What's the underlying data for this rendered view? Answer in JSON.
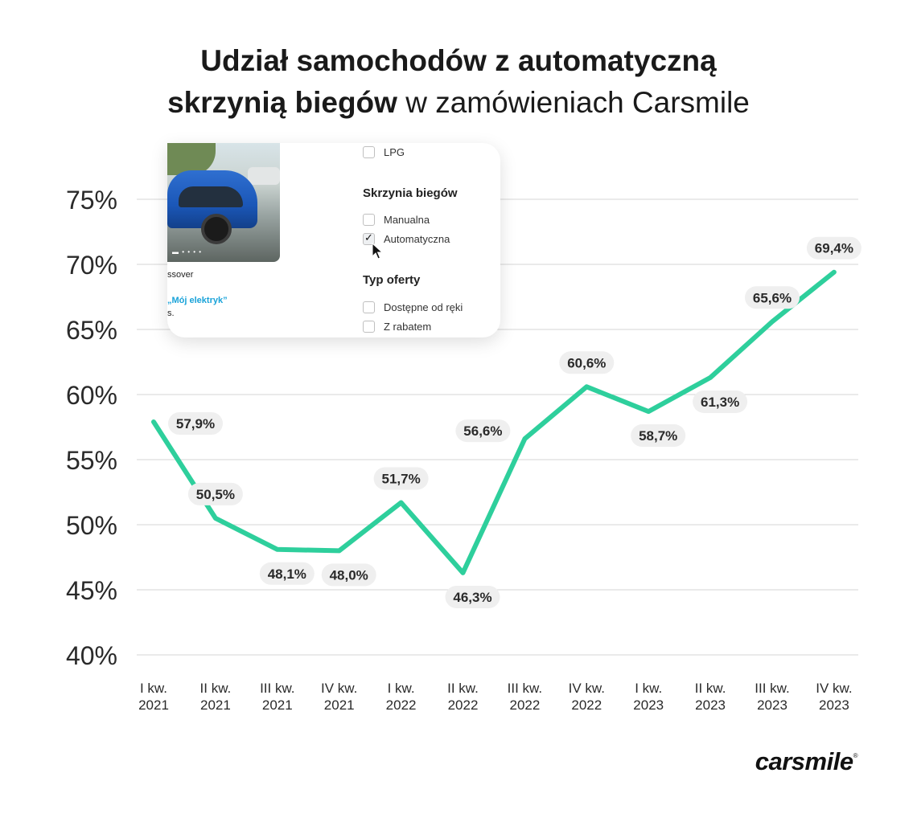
{
  "title": {
    "line1_bold": "Udział samochodów z automatyczną",
    "line2_bold": "skrzynią biegów",
    "line2_light": "w zamówieniach Carsmile"
  },
  "chart_data": {
    "type": "line",
    "categories": [
      [
        "I kw.",
        "2021"
      ],
      [
        "II kw.",
        "2021"
      ],
      [
        "III kw.",
        "2021"
      ],
      [
        "IV kw.",
        "2021"
      ],
      [
        "I kw.",
        "2022"
      ],
      [
        "II kw.",
        "2022"
      ],
      [
        "III kw.",
        "2022"
      ],
      [
        "IV kw.",
        "2022"
      ],
      [
        "I kw.",
        "2023"
      ],
      [
        "II kw.",
        "2023"
      ],
      [
        "III kw.",
        "2023"
      ],
      [
        "IV kw.",
        "2023"
      ]
    ],
    "series": [
      {
        "values": [
          57.9,
          50.5,
          48.1,
          48.0,
          51.7,
          46.3,
          56.6,
          60.6,
          58.7,
          61.3,
          65.6,
          69.4
        ],
        "labels": [
          "57,9%",
          "50,5%",
          "48,1%",
          "48,0%",
          "51,7%",
          "46,3%",
          "56,6%",
          "60,6%",
          "58,7%",
          "61,3%",
          "65,6%",
          "69,4%"
        ],
        "label_positions": [
          "right",
          "above",
          "below",
          "below",
          "above",
          "below",
          "left",
          "above",
          "below",
          "below",
          "above",
          "above"
        ],
        "color": "#2ecf9c"
      }
    ],
    "yticks": [
      40,
      45,
      50,
      55,
      60,
      65,
      70,
      75
    ],
    "ytick_labels": [
      "40%",
      "45%",
      "50%",
      "55%",
      "60%",
      "65%",
      "70%",
      "75%"
    ],
    "ylim": [
      40,
      76
    ],
    "grid": true,
    "label_bg": "#efefef"
  },
  "ui_card": {
    "fuel_option": "LPG",
    "gearbox_heading": "Skrzynia biegów",
    "gearbox_options": [
      "Manualna",
      "Automatyczna"
    ],
    "gearbox_checked": "Automatyczna",
    "offer_heading": "Typ oferty",
    "offer_options": [
      "Dostępne od ręki",
      "Z rabatem"
    ],
    "left_text_1": "ssover",
    "left_link": "„Mój elektryk”",
    "left_text_2": "s."
  },
  "logo": {
    "text": "carsmile",
    "mark": "®"
  }
}
